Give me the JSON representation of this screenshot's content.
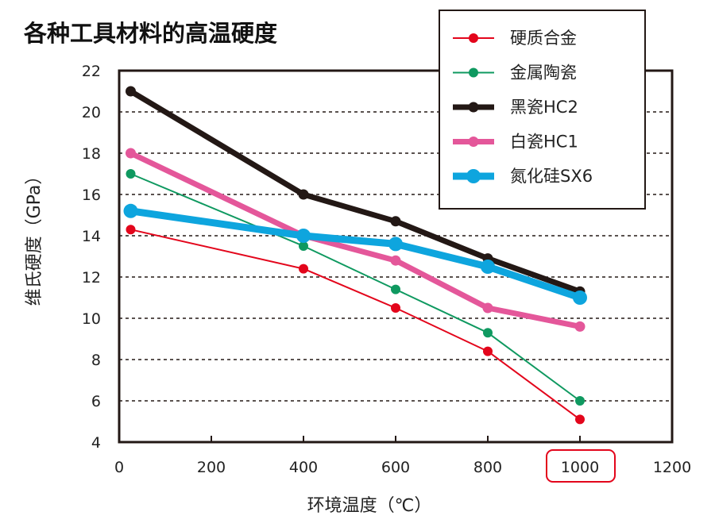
{
  "chart_data": {
    "type": "line",
    "title": "各种工具材料的高温硬度",
    "xlabel": "环境温度（℃）",
    "ylabel": "维氏硬度（GPa）",
    "xlim": [
      0,
      1200
    ],
    "ylim": [
      4,
      22
    ],
    "xticks": [
      "0",
      "200",
      "400",
      "600",
      "800",
      "1000",
      "1200"
    ],
    "yticks": [
      "4",
      "6",
      "8",
      "10",
      "12",
      "14",
      "16",
      "18",
      "20",
      "22"
    ],
    "highlighted_tick": "1000",
    "grid": "horizontal dashed",
    "legend_position": "top-right",
    "series": [
      {
        "name": "硬质合金",
        "color": "#e3051b",
        "weight": "thin",
        "x": [
          25,
          400,
          600,
          800,
          1000
        ],
        "y": [
          14.3,
          12.4,
          10.5,
          8.4,
          5.1
        ]
      },
      {
        "name": "金属陶瓷",
        "color": "#0f9960",
        "weight": "thin",
        "x": [
          25,
          400,
          600,
          800,
          1000
        ],
        "y": [
          17.0,
          13.5,
          11.4,
          9.3,
          6.0
        ]
      },
      {
        "name": "黑瓷HC2",
        "color": "#231815",
        "weight": "thick",
        "x": [
          25,
          400,
          600,
          800,
          1000
        ],
        "y": [
          21.0,
          16.0,
          14.7,
          12.9,
          11.3
        ]
      },
      {
        "name": "白瓷HC1",
        "color": "#e4579a",
        "weight": "thick",
        "x": [
          25,
          400,
          600,
          800,
          1000
        ],
        "y": [
          18.0,
          14.0,
          12.8,
          10.5,
          9.6
        ]
      },
      {
        "name": "氮化硅SX6",
        "color": "#0ea5de",
        "weight": "xthick",
        "x": [
          25,
          400,
          600,
          800,
          1000
        ],
        "y": [
          15.2,
          14.0,
          13.6,
          12.5,
          11.0
        ]
      }
    ]
  }
}
